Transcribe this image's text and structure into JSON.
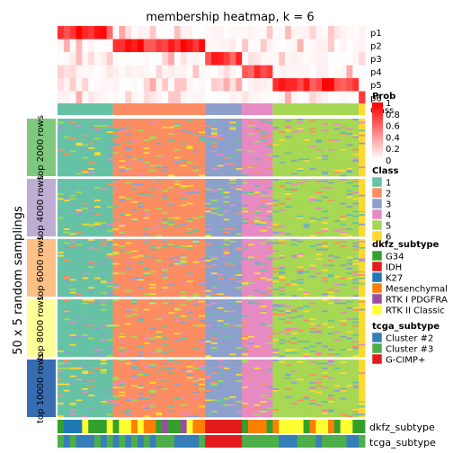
{
  "chart_data": {
    "type": "heatmap",
    "title": "membership heatmap, k = 6",
    "ylabel": "50 x 5 random samplings",
    "prob_rows": [
      "p1",
      "p2",
      "p3",
      "p4",
      "p5",
      "p6"
    ],
    "class_row_label": "Class",
    "bottom_rows": [
      "dkfz_subtype",
      "tcga_subtype"
    ],
    "panels": [
      "top 2000 rows",
      "top 4000 rows",
      "top 6000 rows",
      "top 8000 rows",
      "top 10000 rows"
    ],
    "panel_colors": [
      "#7fc97f",
      "#beaed4",
      "#fdc086",
      "#ffff99",
      "#386cb0"
    ],
    "sample_blocks": [
      {
        "class": "1",
        "n": 9
      },
      {
        "class": "2",
        "n": 15
      },
      {
        "class": "3",
        "n": 6
      },
      {
        "class": "4",
        "n": 5
      },
      {
        "class": "5",
        "n": 14
      },
      {
        "class": "6",
        "n": 1
      }
    ],
    "legends": {
      "prob": {
        "title": "Prob",
        "ticks": [
          "1",
          "0.8",
          "0.6",
          "0.4",
          "0.2",
          "0"
        ],
        "values": [
          1,
          0.8,
          0.6,
          0.4,
          0.2,
          0
        ],
        "colors": [
          "#ffffff",
          "#ff0000"
        ]
      },
      "class": {
        "title": "Class",
        "items": [
          {
            "label": "1",
            "color": "#66c2a5"
          },
          {
            "label": "2",
            "color": "#fc8d62"
          },
          {
            "label": "3",
            "color": "#8da0cb"
          },
          {
            "label": "4",
            "color": "#e78ac3"
          },
          {
            "label": "5",
            "color": "#a6d854"
          },
          {
            "label": "6",
            "color": "#ffd92f"
          }
        ]
      },
      "dkfz": {
        "title": "dkfz_subtype",
        "items": [
          {
            "label": "G34",
            "color": "#33a02c"
          },
          {
            "label": "IDH",
            "color": "#e31a1c"
          },
          {
            "label": "K27",
            "color": "#1f78b4"
          },
          {
            "label": "Mesenchymal",
            "color": "#ff7f00"
          },
          {
            "label": "RTK I PDGFRA",
            "color": "#984ea3"
          },
          {
            "label": "RTK II Classic",
            "color": "#ffff33"
          }
        ]
      },
      "tcga": {
        "title": "tcga_subtype",
        "items": [
          {
            "label": "Cluster #2",
            "color": "#377eb8"
          },
          {
            "label": "Cluster #3",
            "color": "#4daf4a"
          },
          {
            "label": "G-CIMP+",
            "color": "#e41a1c"
          }
        ]
      }
    }
  }
}
